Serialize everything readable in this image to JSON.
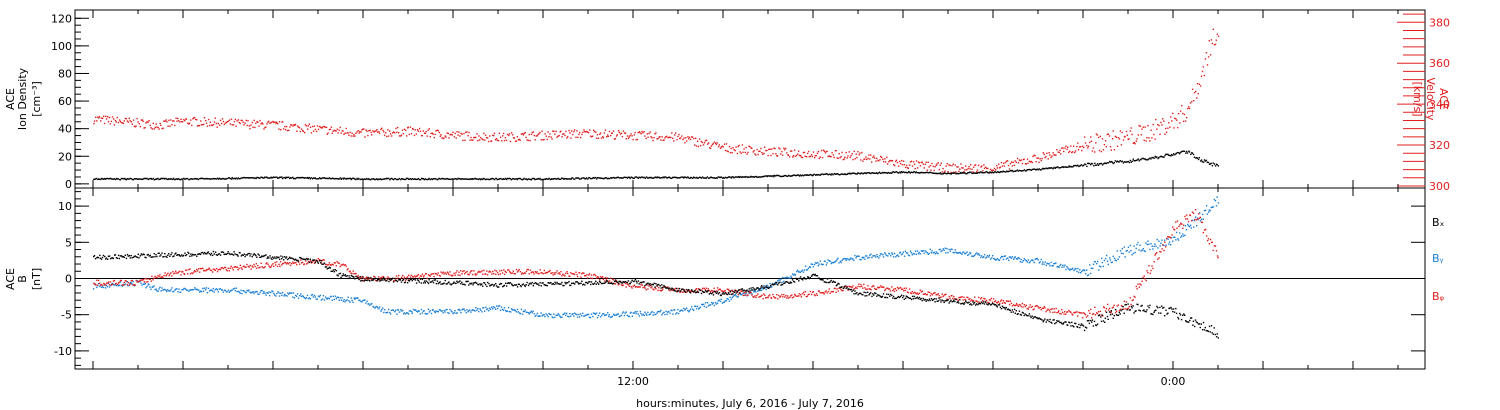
{
  "colors": {
    "black": "#000000",
    "red": "#e02020",
    "blue": "#1a7fd4"
  },
  "xaxis": {
    "label": "hours:minutes, July  6, 2016 - July  7, 2016",
    "tick_labels": [
      "12:00",
      "0:00"
    ]
  },
  "top_panel": {
    "ylabel_lines": [
      "ACE",
      "Ion Density",
      "[cm⁻³]"
    ],
    "y2label_lines": [
      "ACE",
      "Velocity",
      "[km/s]"
    ]
  },
  "bottom_panel": {
    "ylabel_lines": [
      "ACE",
      "B",
      "[nT]"
    ],
    "legend": [
      "Bₓ",
      "Bᵧ",
      "Bᵩ"
    ]
  },
  "chart_data": [
    {
      "type": "scatter",
      "panel": "top",
      "x_unit": "hours since 2016-07-06 00:00 UT",
      "xlim": [
        -0.4,
        29.6
      ],
      "xticks": [
        {
          "x": 12,
          "label": "12:00"
        },
        {
          "x": 24,
          "label": "0:00"
        }
      ],
      "xlabel": "hours:minutes, July  6, 2016 - July  7, 2016",
      "ylabel": "ACE Ion Density [cm⁻³]",
      "y2label": "ACE Velocity [km/s]",
      "ylim": [
        -3,
        126
      ],
      "y2lim": [
        299,
        386
      ],
      "yticks": [
        0,
        20,
        40,
        60,
        80,
        100,
        120
      ],
      "y2ticks": [
        300,
        320,
        340,
        360,
        380
      ],
      "series": [
        {
          "axis": "left",
          "color": "#000000",
          "x": [
            0,
            2,
            4,
            6,
            8,
            10,
            12,
            14,
            15,
            16,
            17,
            18,
            19,
            20,
            21,
            22,
            23,
            23.5,
            24,
            24.3,
            24.6,
            25
          ],
          "y": [
            4,
            4,
            5,
            4,
            4,
            4,
            5,
            5,
            6,
            7,
            8,
            9,
            8,
            9,
            11,
            14,
            17,
            19,
            22,
            24,
            18,
            13
          ]
        },
        {
          "axis": "right",
          "color": "#e02020",
          "x": [
            0,
            1,
            1.5,
            2,
            3,
            4,
            5,
            6,
            7,
            8,
            9,
            10,
            11,
            12,
            13,
            14,
            15,
            16,
            17,
            18,
            19,
            20,
            21,
            22,
            23,
            23.5,
            24,
            24.3,
            24.6,
            24.8,
            25
          ],
          "y": [
            333,
            331,
            330,
            332,
            331,
            330,
            328,
            326,
            327,
            325,
            324,
            325,
            326,
            325,
            324,
            319,
            317,
            316,
            315,
            311,
            309,
            309,
            314,
            320,
            324,
            327,
            332,
            337,
            352,
            368,
            378
          ]
        }
      ]
    },
    {
      "type": "scatter",
      "panel": "bottom",
      "x_unit": "hours since 2016-07-06 00:00 UT",
      "xlim": [
        -0.4,
        29.6
      ],
      "xticks": [
        {
          "x": 12,
          "label": "12:00"
        },
        {
          "x": 24,
          "label": "0:00"
        }
      ],
      "ylabel": "ACE B [nT]",
      "ylim": [
        -12.5,
        12.5
      ],
      "yticks": [
        -10,
        -5,
        0,
        5,
        10
      ],
      "zero_line": true,
      "series": [
        {
          "name": "Bₓ",
          "color": "#000000",
          "x": [
            0,
            1,
            2,
            3,
            4,
            5,
            5.5,
            6,
            7,
            8,
            9,
            10,
            11,
            12,
            13,
            14,
            15,
            16,
            17,
            18,
            19,
            20,
            21,
            22,
            23,
            24,
            24.5,
            25
          ],
          "y": [
            3,
            3.2,
            3.4,
            3.6,
            3,
            2.5,
            0.5,
            0,
            -0.2,
            -0.5,
            -0.8,
            -0.7,
            -0.5,
            -0.3,
            -1.5,
            -2,
            -1,
            0.5,
            -2,
            -2.5,
            -3,
            -3.5,
            -5.5,
            -6.5,
            -4,
            -4.5,
            -6,
            -7.5
          ]
        },
        {
          "name": "Bᵧ",
          "color": "#1a7fd4",
          "x": [
            0,
            1,
            1.5,
            2,
            3,
            4,
            5,
            6,
            6.5,
            7,
            8,
            9,
            10,
            11,
            12,
            13,
            14,
            15,
            15.5,
            16,
            17,
            18,
            19,
            20,
            21,
            22,
            23,
            24,
            24.5,
            25
          ],
          "y": [
            -1,
            -0.5,
            -1.5,
            -1.5,
            -1.5,
            -2,
            -2.5,
            -3,
            -4.5,
            -4.5,
            -4.5,
            -4,
            -5,
            -5,
            -4.8,
            -4.5,
            -3,
            -1,
            0.5,
            2,
            3,
            3.5,
            4,
            3,
            2.5,
            1,
            4,
            5.5,
            8,
            11
          ]
        },
        {
          "name": "Bᵩ",
          "color": "#e02020",
          "x": [
            0,
            1,
            1.5,
            2,
            3,
            4,
            5,
            5.5,
            6,
            7,
            8,
            9,
            10,
            11,
            12,
            13,
            14,
            15,
            16,
            17,
            18,
            19,
            20,
            21,
            22,
            23,
            24,
            24.5,
            25
          ],
          "y": [
            -0.5,
            -0.5,
            0.5,
            1,
            1.5,
            2,
            2.5,
            2,
            0,
            0.2,
            0.8,
            1,
            1,
            0.5,
            -1,
            -1.5,
            -1.5,
            -2.5,
            -2,
            -1,
            -1.5,
            -2.5,
            -3,
            -4,
            -5,
            -3.5,
            7,
            9,
            3
          ]
        }
      ]
    }
  ]
}
